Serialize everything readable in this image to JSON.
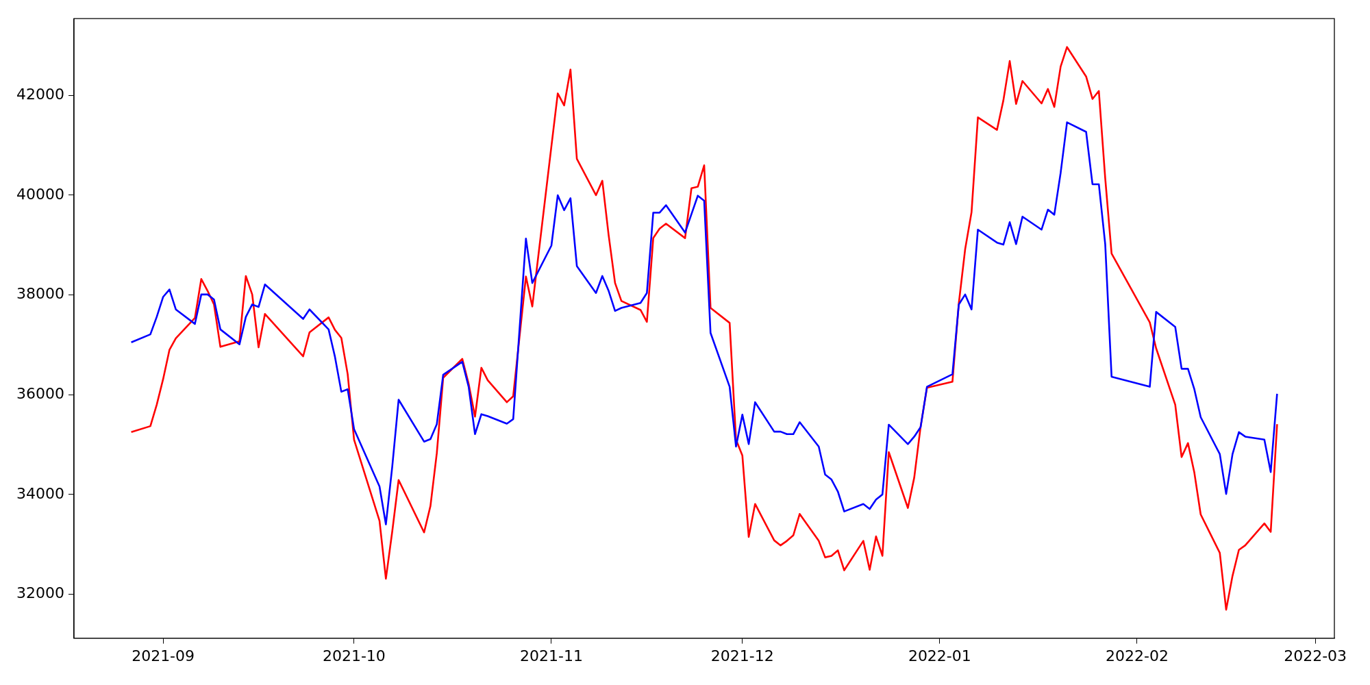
{
  "chart_data": {
    "type": "line",
    "x": [
      "2021-08-27",
      "2021-08-30",
      "2021-08-31",
      "2021-09-01",
      "2021-09-02",
      "2021-09-03",
      "2021-09-06",
      "2021-09-07",
      "2021-09-08",
      "2021-09-09",
      "2021-09-10",
      "2021-09-13",
      "2021-09-14",
      "2021-09-15",
      "2021-09-16",
      "2021-09-17",
      "2021-09-23",
      "2021-09-24",
      "2021-09-27",
      "2021-09-28",
      "2021-09-29",
      "2021-09-30",
      "2021-10-01",
      "2021-10-05",
      "2021-10-06",
      "2021-10-07",
      "2021-10-08",
      "2021-10-12",
      "2021-10-13",
      "2021-10-14",
      "2021-10-15",
      "2021-10-18",
      "2021-10-19",
      "2021-10-20",
      "2021-10-21",
      "2021-10-22",
      "2021-10-25",
      "2021-10-26",
      "2021-10-28",
      "2021-10-29",
      "2021-11-01",
      "2021-11-02",
      "2021-11-03",
      "2021-11-04",
      "2021-11-05",
      "2021-11-08",
      "2021-11-09",
      "2021-11-10",
      "2021-11-11",
      "2021-11-12",
      "2021-11-15",
      "2021-11-16",
      "2021-11-17",
      "2021-11-18",
      "2021-11-19",
      "2021-11-22",
      "2021-11-23",
      "2021-11-24",
      "2021-11-25",
      "2021-11-26",
      "2021-11-29",
      "2021-11-30",
      "2021-12-01",
      "2021-12-02",
      "2021-12-03",
      "2021-12-06",
      "2021-12-07",
      "2021-12-08",
      "2021-12-09",
      "2021-12-10",
      "2021-12-13",
      "2021-12-14",
      "2021-12-15",
      "2021-12-16",
      "2021-12-17",
      "2021-12-20",
      "2021-12-21",
      "2021-12-22",
      "2021-12-23",
      "2021-12-24",
      "2021-12-27",
      "2021-12-28",
      "2021-12-29",
      "2021-12-30",
      "2022-01-03",
      "2022-01-04",
      "2022-01-05",
      "2022-01-06",
      "2022-01-07",
      "2022-01-10",
      "2022-01-11",
      "2022-01-12",
      "2022-01-13",
      "2022-01-14",
      "2022-01-17",
      "2022-01-18",
      "2022-01-19",
      "2022-01-20",
      "2022-01-21",
      "2022-01-24",
      "2022-01-25",
      "2022-01-26",
      "2022-01-27",
      "2022-01-28",
      "2022-02-03",
      "2022-02-04",
      "2022-02-07",
      "2022-02-08",
      "2022-02-09",
      "2022-02-10",
      "2022-02-11",
      "2022-02-14",
      "2022-02-15",
      "2022-02-16",
      "2022-02-17",
      "2022-02-18",
      "2022-02-21",
      "2022-02-22",
      "2022-02-23"
    ],
    "series": [
      {
        "color": "#0000ff",
        "values": [
          37050,
          37210,
          37560,
          37960,
          38110,
          37710,
          37420,
          38010,
          38010,
          37910,
          37310,
          37010,
          37560,
          37810,
          37760,
          38210,
          37520,
          37710,
          37310,
          36760,
          36060,
          36110,
          35310,
          34160,
          33400,
          34560,
          35900,
          35060,
          35110,
          35410,
          36400,
          36660,
          36160,
          35210,
          35610,
          35570,
          35420,
          35510,
          39130,
          38240,
          38990,
          40000,
          39700,
          39940,
          38580,
          38040,
          38380,
          38080,
          37680,
          37740,
          37840,
          38040,
          39650,
          39650,
          39800,
          39250,
          39620,
          39990,
          39890,
          37240,
          36160,
          34960,
          35600,
          35010,
          35850,
          35260,
          35260,
          35210,
          35210,
          35450,
          34960,
          34400,
          34300,
          34060,
          33660,
          33810,
          33710,
          33900,
          34000,
          35400,
          35010,
          35160,
          35350,
          36160,
          36410,
          37810,
          38010,
          37710,
          39310,
          39050,
          39010,
          39460,
          39020,
          39570,
          39310,
          39710,
          39610,
          40450,
          41460,
          41270,
          40220,
          40220,
          39020,
          36360,
          36160,
          37660,
          37360,
          36520,
          36520,
          36110,
          35550,
          34810,
          34010,
          34810,
          35250,
          35160,
          35100,
          34450,
          36020
        ]
      },
      {
        "color": "#ff0000",
        "values": [
          35250,
          35370,
          35800,
          36310,
          36900,
          37130,
          37540,
          38320,
          38080,
          37810,
          36960,
          37070,
          38380,
          38010,
          36950,
          37620,
          36770,
          37250,
          37550,
          37300,
          37140,
          36410,
          35100,
          33470,
          32310,
          33260,
          34290,
          33240,
          33770,
          34830,
          36340,
          36720,
          36220,
          35560,
          36540,
          36290,
          35850,
          35970,
          38370,
          37770,
          40980,
          42040,
          41800,
          42520,
          40730,
          40000,
          40290,
          39190,
          38240,
          37880,
          37700,
          37460,
          39140,
          39330,
          39430,
          39140,
          40140,
          40170,
          40600,
          37740,
          37440,
          35100,
          34780,
          33150,
          33810,
          33080,
          32980,
          33070,
          33180,
          33610,
          33070,
          32740,
          32770,
          32880,
          32480,
          33070,
          32490,
          33160,
          32770,
          34850,
          33730,
          34340,
          35360,
          36140,
          36260,
          37830,
          38920,
          39660,
          41560,
          41310,
          41900,
          42690,
          41830,
          42290,
          41840,
          42130,
          41770,
          42580,
          42970,
          42380,
          41930,
          42090,
          40340,
          38830,
          37450,
          36930,
          35800,
          34750,
          35030,
          34440,
          33600,
          32830,
          31690,
          32370,
          32890,
          32980,
          33420,
          33250,
          35410
        ]
      }
    ],
    "xlim": [
      "2021-08-18",
      "2022-03-04"
    ],
    "xticks": [
      {
        "value": "2021-09-01",
        "label": "2021-09"
      },
      {
        "value": "2021-10-01",
        "label": "2021-10"
      },
      {
        "value": "2021-11-01",
        "label": "2021-11"
      },
      {
        "value": "2021-12-01",
        "label": "2021-12"
      },
      {
        "value": "2022-01-01",
        "label": "2022-01"
      },
      {
        "value": "2022-02-01",
        "label": "2022-02"
      },
      {
        "value": "2022-03-01",
        "label": "2022-03"
      }
    ],
    "ylim": [
      31120,
      43540
    ],
    "yticks": [
      32000,
      34000,
      36000,
      38000,
      40000,
      42000
    ]
  }
}
